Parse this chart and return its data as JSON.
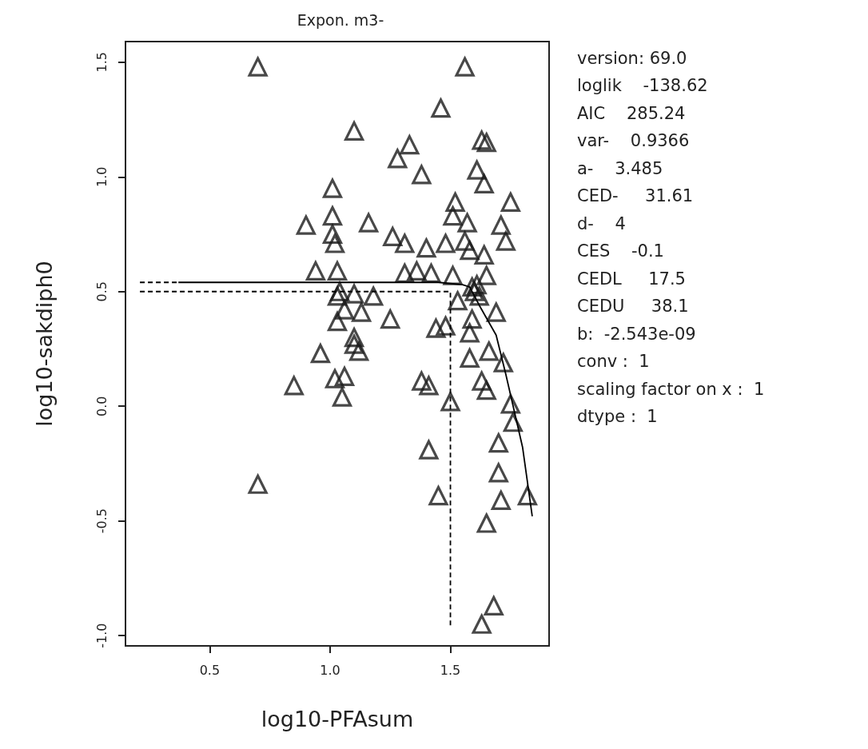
{
  "chart_data": {
    "type": "scatter",
    "title": "Expon. m3-",
    "xlabel": "log10-PFAsum",
    "ylabel": "log10-sakdiph0",
    "marker": "triangle",
    "grid": false,
    "xlim": [
      0.15,
      1.91
    ],
    "ylim": [
      -1.045,
      1.59
    ],
    "xticks": [
      0.5,
      {
        "value": 1,
        "label": "1.0"
      },
      1.5
    ],
    "yticks": [
      {
        "value": -1,
        "label": "-1.0"
      },
      -0.5,
      {
        "value": 0,
        "label": "0.0"
      },
      0.5,
      {
        "value": 1,
        "label": "1.0"
      },
      1.5
    ],
    "annotations": [
      "version: 69.0",
      "loglik    -138.62",
      "AIC    285.24",
      "var-    0.9366",
      "a-    3.485",
      "CED-     31.61",
      "d-    4",
      "CES    -0.1",
      "CEDL     17.5",
      "CEDU     38.1",
      "b:  -2.543e-09",
      "conv :  1",
      "scaling factor on x :  1",
      "dtype :  1"
    ],
    "series": [
      {
        "color": "#1a1a1a",
        "x": [
          0.7,
          1.01,
          1.01,
          0.9,
          1.01,
          1.02,
          0.94,
          1.03,
          1.03,
          1.03,
          0.96,
          0.85,
          1.02,
          1.06,
          1.05,
          0.7,
          1.1,
          1.12,
          1.38,
          1.41,
          1.5,
          1.41,
          1.45,
          1.58,
          1.66,
          1.72,
          1.63,
          1.65,
          1.75,
          1.76,
          1.7,
          1.7,
          1.71,
          1.65,
          1.82,
          1.68,
          1.63,
          1.56,
          1.46,
          1.1,
          1.33,
          1.28,
          1.63,
          1.65,
          1.38,
          1.61,
          1.64,
          1.52,
          1.75,
          1.51,
          1.57,
          1.16,
          1.71,
          1.73,
          1.26,
          1.31,
          1.4,
          1.48,
          1.56,
          1.58,
          1.64,
          1.31,
          1.36,
          1.42,
          1.51,
          1.65,
          1.6,
          1.59,
          1.62,
          1.61,
          1.04,
          1.1,
          1.18,
          1.06,
          1.13,
          1.25,
          1.53,
          1.69,
          1.48,
          1.44,
          1.59,
          1.58,
          1.1
        ],
        "values": [
          1.48,
          0.95,
          0.83,
          0.79,
          0.75,
          0.71,
          0.59,
          0.59,
          0.48,
          0.37,
          0.23,
          0.09,
          0.12,
          0.13,
          0.04,
          -0.34,
          0.27,
          0.24,
          0.11,
          0.09,
          0.02,
          -0.19,
          -0.39,
          0.21,
          0.24,
          0.19,
          0.11,
          0.07,
          0.01,
          -0.07,
          -0.16,
          -0.29,
          -0.41,
          -0.51,
          -0.39,
          -0.87,
          -0.95,
          1.48,
          1.3,
          1.2,
          1.14,
          1.08,
          1.16,
          1.15,
          1.01,
          1.03,
          0.97,
          0.89,
          0.89,
          0.83,
          0.8,
          0.8,
          0.79,
          0.72,
          0.74,
          0.71,
          0.69,
          0.71,
          0.72,
          0.68,
          0.66,
          0.58,
          0.59,
          0.58,
          0.57,
          0.57,
          0.5,
          0.52,
          0.48,
          0.53,
          0.5,
          0.49,
          0.48,
          0.42,
          0.41,
          0.38,
          0.46,
          0.41,
          0.35,
          0.34,
          0.38,
          0.32,
          0.3
        ]
      },
      {
        "type": "line",
        "marker": "none",
        "line_style": "solid",
        "color": "#000000",
        "x": [
          0.37,
          1.0,
          1.45,
          1.55,
          1.58,
          1.62,
          1.69,
          1.73,
          1.8,
          1.84
        ],
        "values": [
          0.54,
          0.54,
          0.54,
          0.53,
          0.52,
          0.44,
          0.31,
          0.14,
          -0.18,
          -0.48
        ]
      },
      {
        "type": "line",
        "marker": "none",
        "line_style": "dashed",
        "color": "#000000",
        "x": [
          0.21,
          0.37
        ],
        "values": [
          0.54,
          0.54
        ]
      },
      {
        "type": "line",
        "marker": "none",
        "line_style": "dashed",
        "color": "#000000",
        "x": [
          0.21,
          1.5,
          1.5
        ],
        "values": [
          0.5,
          0.5,
          -0.955
        ]
      }
    ]
  }
}
